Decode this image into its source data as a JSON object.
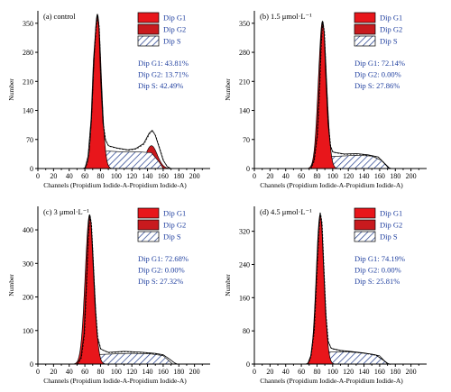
{
  "colors": {
    "g1": "#e8161b",
    "g2": "#c81a1e",
    "s_fill": "#ffffff",
    "s_hatch": "#1f3a8a",
    "text_blue": "#1f3f9f"
  },
  "chart_data": [
    {
      "type": "area",
      "panel_label": "(a) control",
      "xlabel": "Channels (Propidium Iodide-A-Propidium Iodide-A)",
      "ylabel": "Number",
      "xlim": [
        0,
        220
      ],
      "ylim": [
        0,
        380
      ],
      "xticks": [
        "0",
        "20",
        "40",
        "60",
        "80",
        "100",
        "120",
        "140",
        "160",
        "180",
        "200"
      ],
      "yticks": [
        "0",
        "70",
        "140",
        "210",
        "280",
        "350"
      ],
      "legend": [
        "Dip G1",
        "Dip G2",
        "Dip S"
      ],
      "stats": [
        "Dip G1: 43.81%",
        "Dip G2: 13.71%",
        "Dip S: 42.49%"
      ],
      "g1": {
        "center": 76,
        "sd": 5.0,
        "peak": 372
      },
      "g2": {
        "center": 145,
        "sd": 7.5,
        "peak": 55
      },
      "s": [
        [
          70,
          0
        ],
        [
          78,
          40
        ],
        [
          90,
          42
        ],
        [
          110,
          40
        ],
        [
          130,
          40
        ],
        [
          145,
          38
        ],
        [
          155,
          15
        ],
        [
          160,
          0
        ]
      ],
      "outline": [
        [
          60,
          0
        ],
        [
          64,
          30
        ],
        [
          68,
          120
        ],
        [
          71,
          260
        ],
        [
          74,
          340
        ],
        [
          76,
          370
        ],
        [
          78,
          340
        ],
        [
          80,
          220
        ],
        [
          83,
          110
        ],
        [
          86,
          70
        ],
        [
          90,
          55
        ],
        [
          100,
          50
        ],
        [
          115,
          45
        ],
        [
          125,
          48
        ],
        [
          135,
          60
        ],
        [
          142,
          85
        ],
        [
          146,
          92
        ],
        [
          150,
          80
        ],
        [
          155,
          50
        ],
        [
          160,
          20
        ],
        [
          165,
          5
        ],
        [
          170,
          0
        ]
      ]
    },
    {
      "type": "area",
      "panel_label": "(b) 1.5 μmol·L⁻¹",
      "xlabel": "Channels (Propidium Iodide-A-Propidium Iodide-A)",
      "ylabel": "Number",
      "xlim": [
        0,
        220
      ],
      "ylim": [
        0,
        380
      ],
      "xticks": [
        "0",
        "20",
        "40",
        "60",
        "80",
        "100",
        "120",
        "140",
        "160",
        "180",
        "200"
      ],
      "yticks": [
        "0",
        "70",
        "140",
        "210",
        "280",
        "350"
      ],
      "legend": [
        "Dip G1",
        "Dip G2",
        "Dip S"
      ],
      "stats": [
        "Dip G1: 72.14%",
        "Dip G2: 0.00%",
        "Dip S: 27.86%"
      ],
      "g1": {
        "center": 87,
        "sd": 5.2,
        "peak": 355
      },
      "s": [
        [
          78,
          0
        ],
        [
          90,
          28
        ],
        [
          110,
          30
        ],
        [
          130,
          32
        ],
        [
          150,
          30
        ],
        [
          162,
          20
        ],
        [
          172,
          0
        ]
      ],
      "outline": [
        [
          72,
          0
        ],
        [
          76,
          20
        ],
        [
          80,
          80
        ],
        [
          83,
          200
        ],
        [
          85,
          300
        ],
        [
          87,
          355
        ],
        [
          89,
          330
        ],
        [
          91,
          230
        ],
        [
          94,
          110
        ],
        [
          97,
          55
        ],
        [
          100,
          40
        ],
        [
          115,
          35
        ],
        [
          130,
          36
        ],
        [
          145,
          33
        ],
        [
          158,
          28
        ],
        [
          165,
          15
        ],
        [
          172,
          2
        ],
        [
          175,
          0
        ]
      ]
    },
    {
      "type": "area",
      "panel_label": "(c) 3 μmol·L⁻¹",
      "xlabel": "Channels (Propidium Iodide-A-Propidium Iodide-A)",
      "ylabel": "Number",
      "xlim": [
        0,
        220
      ],
      "ylim": [
        0,
        470
      ],
      "xticks": [
        "0",
        "20",
        "40",
        "60",
        "80",
        "100",
        "120",
        "140",
        "160",
        "180",
        "200"
      ],
      "yticks": [
        "0",
        "100",
        "200",
        "300",
        "400"
      ],
      "legend": [
        "Dip G1",
        "Dip G2",
        "Dip S"
      ],
      "stats": [
        "Dip G1: 72.68%",
        "Dip G2: 0.00%",
        "Dip S: 27.32%"
      ],
      "g1": {
        "center": 66,
        "sd": 5.5,
        "peak": 445
      },
      "s": [
        [
          60,
          0
        ],
        [
          72,
          28
        ],
        [
          95,
          30
        ],
        [
          120,
          32
        ],
        [
          145,
          30
        ],
        [
          160,
          25
        ],
        [
          172,
          0
        ]
      ],
      "outline": [
        [
          50,
          0
        ],
        [
          55,
          20
        ],
        [
          59,
          90
        ],
        [
          62,
          250
        ],
        [
          64,
          380
        ],
        [
          66,
          445
        ],
        [
          68,
          420
        ],
        [
          70,
          320
        ],
        [
          73,
          170
        ],
        [
          76,
          80
        ],
        [
          80,
          45
        ],
        [
          90,
          35
        ],
        [
          110,
          38
        ],
        [
          130,
          36
        ],
        [
          150,
          32
        ],
        [
          160,
          28
        ],
        [
          168,
          15
        ],
        [
          175,
          3
        ],
        [
          178,
          0
        ]
      ]
    },
    {
      "type": "area",
      "panel_label": "(d) 4.5 μmol·L⁻¹",
      "xlabel": "Channels (Propidium Iodide-A-Propidium Iodide-A)",
      "ylabel": "Number",
      "xlim": [
        0,
        220
      ],
      "ylim": [
        0,
        380
      ],
      "xticks": [
        "0",
        "20",
        "40",
        "60",
        "80",
        "100",
        "120",
        "140",
        "160",
        "180",
        "200"
      ],
      "yticks": [
        "0",
        "80",
        "160",
        "240",
        "320"
      ],
      "legend": [
        "Dip G1",
        "Dip G2",
        "Dip S"
      ],
      "stats": [
        "Dip G1: 74.19%",
        "Dip G2: 0.00%",
        "Dip S: 25.81%"
      ],
      "g1": {
        "center": 84,
        "sd": 5.0,
        "peak": 360
      },
      "s": [
        [
          76,
          0
        ],
        [
          88,
          28
        ],
        [
          110,
          30
        ],
        [
          130,
          28
        ],
        [
          150,
          24
        ],
        [
          160,
          20
        ],
        [
          170,
          0
        ]
      ],
      "outline": [
        [
          68,
          0
        ],
        [
          72,
          20
        ],
        [
          76,
          80
        ],
        [
          79,
          200
        ],
        [
          82,
          320
        ],
        [
          84,
          365
        ],
        [
          86,
          340
        ],
        [
          88,
          250
        ],
        [
          91,
          120
        ],
        [
          94,
          55
        ],
        [
          98,
          38
        ],
        [
          110,
          33
        ],
        [
          125,
          30
        ],
        [
          140,
          27
        ],
        [
          155,
          22
        ],
        [
          163,
          12
        ],
        [
          170,
          2
        ],
        [
          173,
          0
        ]
      ]
    }
  ]
}
